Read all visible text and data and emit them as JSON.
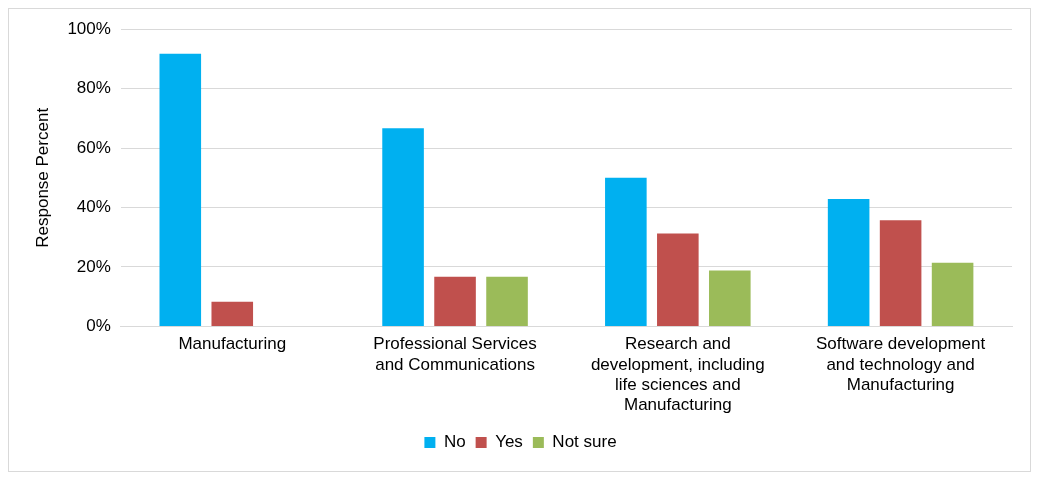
{
  "chart_data": {
    "type": "bar",
    "ylabel": "Response Percent",
    "categories": [
      "Manufacturing",
      "Professional Services and Communications",
      "Research and development, including life sciences and Manufacturing",
      "Software development and technology and Manufacturing"
    ],
    "series": [
      {
        "name": "No",
        "color": "#00b0f0",
        "values": [
          91.7,
          66.7,
          50,
          42.9
        ]
      },
      {
        "name": "Yes",
        "color": "#c0504d",
        "values": [
          8.3,
          16.7,
          31.3,
          35.7
        ]
      },
      {
        "name": "Not sure",
        "color": "#9bbb59",
        "values": [
          0,
          16.7,
          18.8,
          21.4
        ]
      }
    ],
    "ylim": [
      0,
      100
    ],
    "yticks": [
      {
        "value": 0,
        "label": "0%"
      },
      {
        "value": 20,
        "label": "20%"
      },
      {
        "value": 40,
        "label": "40%"
      },
      {
        "value": 60,
        "label": "60%"
      },
      {
        "value": 80,
        "label": "80%"
      },
      {
        "value": 100,
        "label": "100%"
      }
    ],
    "grid": "y",
    "legend": "bottom"
  }
}
